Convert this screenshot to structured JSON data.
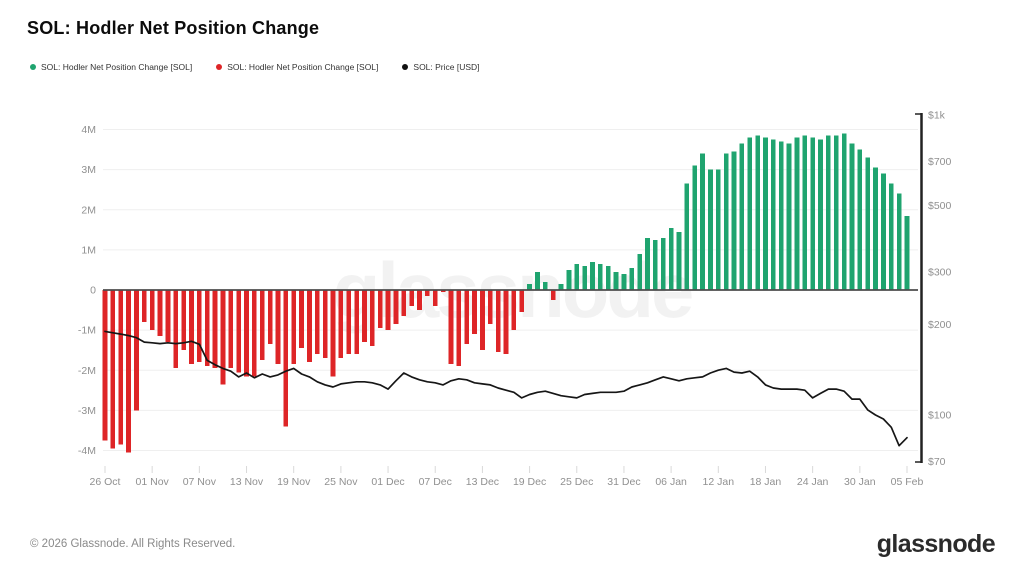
{
  "page": {
    "title": "SOL: Hodler Net Position Change",
    "footer": {
      "copyright": "© 2026 Glassnode. All Rights Reserved.",
      "brand": "glassnode"
    },
    "watermark": "glassnode"
  },
  "legend": {
    "items": [
      {
        "label": "SOL: Hodler Net Position Change [SOL]",
        "color": "#1fa46f",
        "marker": "dot"
      },
      {
        "label": "SOL: Hodler Net Position Change [SOL]",
        "color": "#de2527",
        "marker": "dot"
      },
      {
        "label": "SOL: Price [USD]",
        "color": "#111111",
        "marker": "dot"
      }
    ]
  },
  "chart_data": {
    "type": "bar+line combo, dual axis",
    "title": "SOL: Hodler Net Position Change",
    "grid": "horizontal only",
    "x": {
      "unit": "day",
      "num_days": 103,
      "tick_labels": [
        "26 Oct",
        "01 Nov",
        "07 Nov",
        "13 Nov",
        "19 Nov",
        "25 Nov",
        "01 Dec",
        "07 Dec",
        "13 Dec",
        "19 Dec",
        "25 Dec",
        "31 Dec",
        "06 Jan",
        "12 Jan",
        "18 Jan",
        "24 Jan",
        "30 Jan",
        "05 Feb"
      ],
      "tick_day_indices": [
        0,
        6,
        12,
        18,
        24,
        30,
        36,
        42,
        48,
        54,
        60,
        66,
        72,
        78,
        84,
        90,
        96,
        102
      ],
      "dates": [
        "26 Oct",
        "27 Oct",
        "28 Oct",
        "29 Oct",
        "30 Oct",
        "31 Oct",
        "01 Nov",
        "02 Nov",
        "03 Nov",
        "04 Nov",
        "05 Nov",
        "06 Nov",
        "07 Nov",
        "08 Nov",
        "09 Nov",
        "10 Nov",
        "11 Nov",
        "12 Nov",
        "13 Nov",
        "14 Nov",
        "15 Nov",
        "16 Nov",
        "17 Nov",
        "18 Nov",
        "19 Nov",
        "20 Nov",
        "21 Nov",
        "22 Nov",
        "23 Nov",
        "24 Nov",
        "25 Nov",
        "26 Nov",
        "27 Nov",
        "28 Nov",
        "29 Nov",
        "30 Nov",
        "01 Dec",
        "02 Dec",
        "03 Dec",
        "04 Dec",
        "05 Dec",
        "06 Dec",
        "07 Dec",
        "08 Dec",
        "09 Dec",
        "10 Dec",
        "11 Dec",
        "12 Dec",
        "13 Dec",
        "14 Dec",
        "15 Dec",
        "16 Dec",
        "17 Dec",
        "18 Dec",
        "19 Dec",
        "20 Dec",
        "21 Dec",
        "22 Dec",
        "23 Dec",
        "24 Dec",
        "25 Dec",
        "26 Dec",
        "27 Dec",
        "28 Dec",
        "29 Dec",
        "30 Dec",
        "31 Dec",
        "01 Jan",
        "02 Jan",
        "03 Jan",
        "04 Jan",
        "05 Jan",
        "06 Jan",
        "07 Jan",
        "08 Jan",
        "09 Jan",
        "10 Jan",
        "11 Jan",
        "12 Jan",
        "13 Jan",
        "14 Jan",
        "15 Jan",
        "16 Jan",
        "17 Jan",
        "18 Jan",
        "19 Jan",
        "20 Jan",
        "21 Jan",
        "22 Jan",
        "23 Jan",
        "24 Jan",
        "25 Jan",
        "26 Jan",
        "27 Jan",
        "28 Jan",
        "29 Jan",
        "30 Jan",
        "31 Jan",
        "01 Feb",
        "02 Feb",
        "03 Feb",
        "04 Feb",
        "05 Feb"
      ]
    },
    "y_left": {
      "tick_labels": [
        "4M",
        "3M",
        "2M",
        "1M",
        "0",
        "-1M",
        "-2M",
        "-3M",
        "-4M"
      ],
      "tick_values_millions": [
        4,
        3,
        2,
        1,
        0,
        -1,
        -2,
        -3,
        -4
      ],
      "range_millions": [
        -4.6,
        4.6
      ]
    },
    "y_right": {
      "scale": "log",
      "tick_labels": [
        "$1k",
        "$700",
        "$500",
        "$300",
        "$200",
        "$100",
        "$70"
      ],
      "tick_values": [
        1000,
        700,
        500,
        300,
        200,
        100,
        70
      ],
      "range": [
        70,
        1000
      ]
    },
    "series": [
      {
        "name": "SOL: Hodler Net Position Change [SOL]",
        "type": "bar",
        "axis": "left",
        "unit": "SOL (millions)",
        "positive_color": "#1fa46f",
        "negative_color": "#de2527",
        "values_millions": [
          -3.75,
          -3.95,
          -3.85,
          -4.05,
          -3.0,
          -0.8,
          -1.0,
          -1.15,
          -1.3,
          -1.95,
          -1.5,
          -1.85,
          -1.8,
          -1.9,
          -1.95,
          -2.35,
          -1.95,
          -2.05,
          -2.15,
          -2.15,
          -1.75,
          -1.35,
          -1.85,
          -3.4,
          -1.85,
          -1.45,
          -1.8,
          -1.6,
          -1.7,
          -2.15,
          -1.7,
          -1.6,
          -1.6,
          -1.3,
          -1.4,
          -0.95,
          -1.0,
          -0.85,
          -0.65,
          -0.4,
          -0.5,
          -0.15,
          -0.4,
          -0.05,
          -1.85,
          -1.9,
          -1.35,
          -1.1,
          -1.5,
          -0.85,
          -1.55,
          -1.6,
          -1.0,
          -0.55,
          0.15,
          0.45,
          0.2,
          -0.25,
          0.15,
          0.5,
          0.65,
          0.6,
          0.7,
          0.65,
          0.6,
          0.45,
          0.4,
          0.55,
          0.9,
          1.3,
          1.25,
          1.3,
          1.55,
          1.45,
          2.65,
          3.1,
          3.4,
          3.0,
          3.0,
          3.4,
          3.45,
          3.65,
          3.8,
          3.85,
          3.8,
          3.75,
          3.7,
          3.65,
          3.8,
          3.85,
          3.8,
          3.75,
          3.85,
          3.85,
          3.9,
          3.65,
          3.5,
          3.3,
          3.05,
          2.9,
          2.65,
          2.4,
          1.85
        ]
      },
      {
        "name": "SOL: Price [USD]",
        "type": "line",
        "axis": "right",
        "unit": "USD",
        "color": "#161616",
        "values_usd": [
          190,
          188,
          186,
          184,
          181,
          175,
          174,
          173,
          174,
          173,
          174,
          176,
          172,
          152,
          147,
          143,
          140,
          134,
          138,
          133,
          137,
          134,
          136,
          140,
          143,
          137,
          134,
          129,
          126,
          124,
          127,
          128,
          129,
          129,
          128,
          126,
          122,
          130,
          138,
          134,
          131,
          129,
          128,
          126,
          130,
          132,
          131,
          128,
          127,
          126,
          123,
          121,
          119,
          114,
          117,
          119,
          120,
          118,
          116,
          115,
          114,
          117,
          118,
          119,
          119,
          119,
          120,
          124,
          126,
          128,
          131,
          134,
          132,
          130,
          132,
          133,
          134,
          138,
          141,
          143,
          139,
          138,
          140,
          134,
          126,
          123,
          122,
          122,
          122,
          121,
          114,
          118,
          122,
          122,
          120,
          113,
          113,
          104,
          100,
          97,
          91,
          79,
          84
        ]
      }
    ],
    "style": {
      "grid_color": "#efefef",
      "zero_line_color": "#4d4d4d",
      "axis_label_color": "#909090",
      "right_axis_line_color": "#222222",
      "watermark_color": "#000000",
      "watermark_opacity": 0.05
    }
  }
}
